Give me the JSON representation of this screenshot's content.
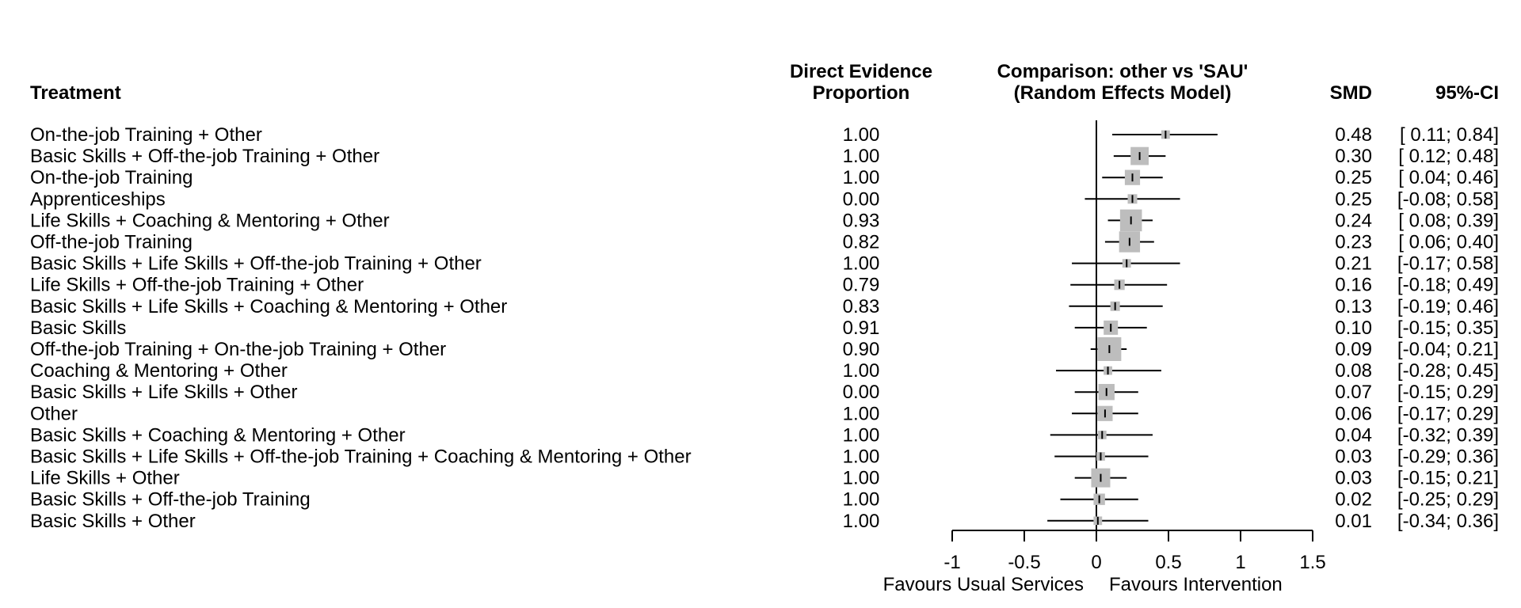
{
  "chart_data": {
    "type": "forest",
    "headers": {
      "treatment": "Treatment",
      "proportion_line1": "Direct Evidence",
      "proportion_line2": "Proportion",
      "comparison_line1": "Comparison: other vs 'SAU'",
      "comparison_line2": "(Random Effects Model)",
      "smd": "SMD",
      "ci": "95%-CI"
    },
    "rows": [
      {
        "treatment": "On-the-job Training + Other",
        "proportion": "1.00",
        "smd": 0.48,
        "lower": 0.11,
        "upper": 0.84,
        "smd_text": "0.48",
        "ci_text": "[ 0.11; 0.84]",
        "weight": 0.45
      },
      {
        "treatment": "Basic Skills + Off-the-job Training + Other",
        "proportion": "1.00",
        "smd": 0.3,
        "lower": 0.12,
        "upper": 0.48,
        "smd_text": "0.30",
        "ci_text": "[ 0.12; 0.48]",
        "weight": 0.95
      },
      {
        "treatment": "On-the-job Training",
        "proportion": "1.00",
        "smd": 0.25,
        "lower": 0.04,
        "upper": 0.46,
        "smd_text": "0.25",
        "ci_text": "[ 0.04; 0.46]",
        "weight": 0.8
      },
      {
        "treatment": "Apprenticeships",
        "proportion": "0.00",
        "smd": 0.25,
        "lower": -0.08,
        "upper": 0.58,
        "smd_text": "0.25",
        "ci_text": "[-0.08; 0.58]",
        "weight": 0.5
      },
      {
        "treatment": "Life Skills + Coaching & Mentoring + Other",
        "proportion": "0.93",
        "smd": 0.24,
        "lower": 0.08,
        "upper": 0.39,
        "smd_text": "0.24",
        "ci_text": "[ 0.08; 0.39]",
        "weight": 1.15
      },
      {
        "treatment": "Off-the-job Training",
        "proportion": "0.82",
        "smd": 0.23,
        "lower": 0.06,
        "upper": 0.4,
        "smd_text": "0.23",
        "ci_text": "[ 0.06; 0.40]",
        "weight": 1.1
      },
      {
        "treatment": "Basic Skills + Life Skills + Off-the-job Training + Other",
        "proportion": "1.00",
        "smd": 0.21,
        "lower": -0.17,
        "upper": 0.58,
        "smd_text": "0.21",
        "ci_text": "[-0.17; 0.58]",
        "weight": 0.45
      },
      {
        "treatment": "Life Skills + Off-the-job Training + Other",
        "proportion": "0.79",
        "smd": 0.16,
        "lower": -0.18,
        "upper": 0.49,
        "smd_text": "0.16",
        "ci_text": "[-0.18; 0.49]",
        "weight": 0.55
      },
      {
        "treatment": "Basic Skills + Life Skills + Coaching & Mentoring + Other",
        "proportion": "0.83",
        "smd": 0.13,
        "lower": -0.19,
        "upper": 0.46,
        "smd_text": "0.13",
        "ci_text": "[-0.19; 0.46]",
        "weight": 0.5
      },
      {
        "treatment": "Basic Skills",
        "proportion": "0.91",
        "smd": 0.1,
        "lower": -0.15,
        "upper": 0.35,
        "smd_text": "0.10",
        "ci_text": "[-0.15; 0.35]",
        "weight": 0.75
      },
      {
        "treatment": "Off-the-job Training + On-the-job Training + Other",
        "proportion": "0.90",
        "smd": 0.09,
        "lower": -0.04,
        "upper": 0.21,
        "smd_text": "0.09",
        "ci_text": "[-0.04; 0.21]",
        "weight": 1.25
      },
      {
        "treatment": "Coaching & Mentoring + Other",
        "proportion": "1.00",
        "smd": 0.08,
        "lower": -0.28,
        "upper": 0.45,
        "smd_text": "0.08",
        "ci_text": "[-0.28; 0.45]",
        "weight": 0.45
      },
      {
        "treatment": "Basic Skills + Life Skills + Other",
        "proportion": "0.00",
        "smd": 0.07,
        "lower": -0.15,
        "upper": 0.29,
        "smd_text": "0.07",
        "ci_text": "[-0.15; 0.29]",
        "weight": 0.85
      },
      {
        "treatment": "Other",
        "proportion": "1.00",
        "smd": 0.06,
        "lower": -0.17,
        "upper": 0.29,
        "smd_text": "0.06",
        "ci_text": "[-0.17; 0.29]",
        "weight": 0.8
      },
      {
        "treatment": "Basic Skills + Coaching & Mentoring + Other",
        "proportion": "1.00",
        "smd": 0.04,
        "lower": -0.32,
        "upper": 0.39,
        "smd_text": "0.04",
        "ci_text": "[-0.32; 0.39]",
        "weight": 0.45
      },
      {
        "treatment": "Basic Skills + Life Skills + Off-the-job Training + Coaching & Mentoring + Other",
        "proportion": "1.00",
        "smd": 0.03,
        "lower": -0.29,
        "upper": 0.36,
        "smd_text": "0.03",
        "ci_text": "[-0.29; 0.36]",
        "weight": 0.45
      },
      {
        "treatment": "Life Skills + Other",
        "proportion": "1.00",
        "smd": 0.03,
        "lower": -0.15,
        "upper": 0.21,
        "smd_text": "0.03",
        "ci_text": "[-0.15; 0.21]",
        "weight": 1.0
      },
      {
        "treatment": "Basic Skills + Off-the-job Training",
        "proportion": "1.00",
        "smd": 0.02,
        "lower": -0.25,
        "upper": 0.29,
        "smd_text": "0.02",
        "ci_text": "[-0.25; 0.29]",
        "weight": 0.6
      },
      {
        "treatment": "Basic Skills + Other",
        "proportion": "1.00",
        "smd": 0.01,
        "lower": -0.34,
        "upper": 0.36,
        "smd_text": "0.01",
        "ci_text": "[-0.34; 0.36]",
        "weight": 0.45
      }
    ],
    "x_axis": {
      "range": [
        -1,
        1.5
      ],
      "ticks": [
        -1,
        -0.5,
        0,
        0.5,
        1,
        1.5
      ],
      "tick_labels": [
        "-1",
        "-0.5",
        "0",
        "0.5",
        "1",
        "1.5"
      ],
      "left_label": "Favours Usual Services",
      "right_label": "Favours Intervention"
    },
    "colors": {
      "box": "#bdbdbd",
      "line": "#000000"
    }
  }
}
